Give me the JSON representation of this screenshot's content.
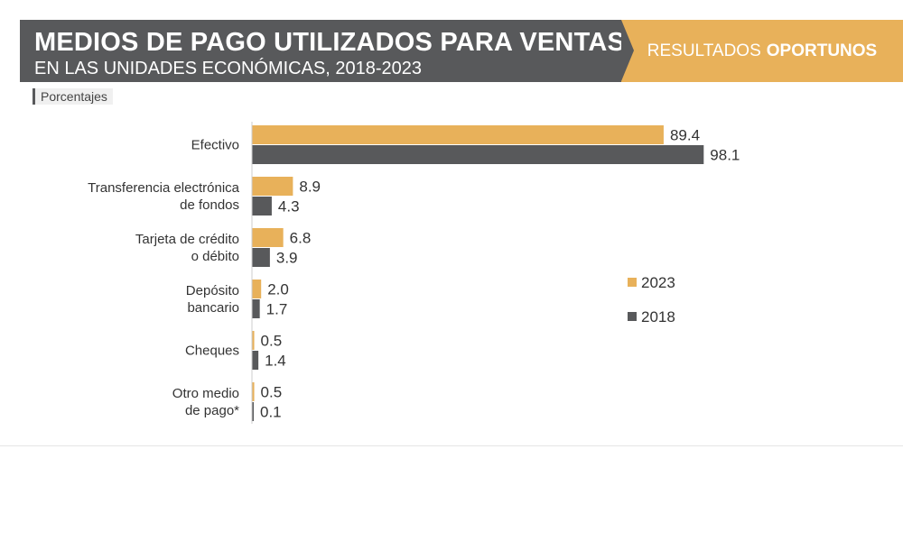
{
  "header": {
    "title": "MEDIOS DE PAGO UTILIZADOS PARA VENTAS",
    "subtitle": "EN LAS UNIDADES ECONÓMICAS, 2018-2023"
  },
  "badge": {
    "text_regular": "RESULTADOS",
    "text_bold": "OPORTUNOS"
  },
  "units_label": "Porcentajes",
  "colors": {
    "s2023": "#e8b15a",
    "s2018": "#58595b",
    "header": "#58595b",
    "badge": "#e8b15a"
  },
  "chart_data": {
    "type": "bar",
    "orientation": "horizontal",
    "categories": [
      [
        "Efectivo"
      ],
      [
        "Transferencia electrónica",
        "de fondos"
      ],
      [
        "Tarjeta de crédito",
        "o débito"
      ],
      [
        "Depósito",
        "bancario"
      ],
      [
        "Cheques"
      ],
      [
        "Otro medio",
        "de pago*"
      ]
    ],
    "series": [
      {
        "name": "2023",
        "values": [
          89.4,
          8.9,
          6.8,
          2.0,
          0.5,
          0.5
        ],
        "labels": [
          "89.4",
          "8.9",
          "6.8",
          "2.0",
          "0.5",
          "0.5"
        ]
      },
      {
        "name": "2018",
        "values": [
          98.1,
          4.3,
          3.9,
          1.7,
          1.4,
          0.1
        ],
        "labels": [
          "98.1",
          "4.3",
          "3.9",
          "1.7",
          "1.4",
          "0.1"
        ]
      }
    ],
    "xlim": [
      0,
      100
    ],
    "grid": false,
    "legend": "right"
  }
}
